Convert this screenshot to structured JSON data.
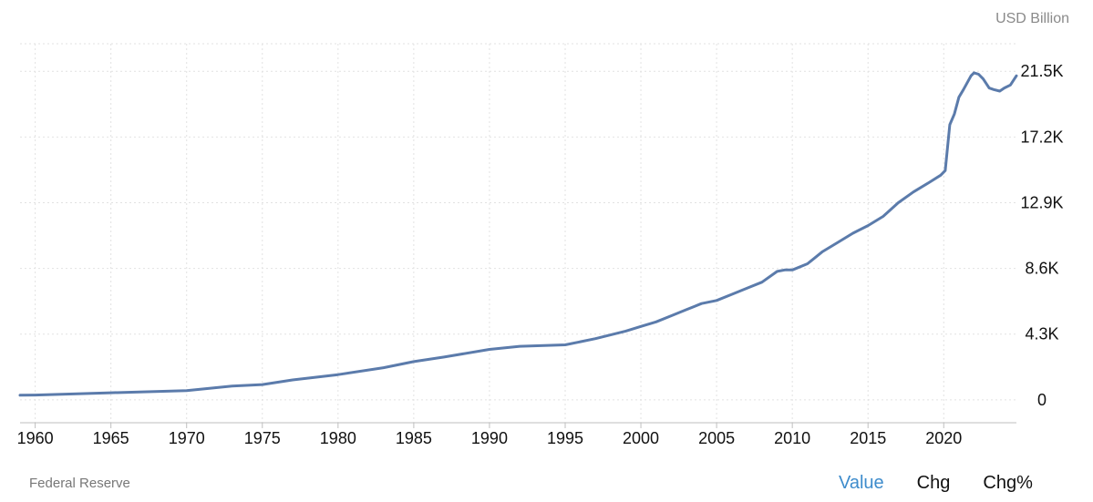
{
  "header": {
    "unit_label": "USD Billion"
  },
  "footer": {
    "source": "Federal Reserve",
    "tabs": [
      {
        "label": "Value",
        "active": true
      },
      {
        "label": "Chg",
        "active": false
      },
      {
        "label": "Chg%",
        "active": false
      }
    ]
  },
  "colors": {
    "line": "#5b7bab",
    "grid": "#e2e2e2",
    "axis": "#bfbfbf",
    "active_tab": "#3e8ccc"
  },
  "chart_data": {
    "type": "line",
    "grid": "dotted",
    "yaxis_side": "right",
    "xlim": [
      1959,
      2024.8
    ],
    "ylim": [
      -1500,
      23300
    ],
    "y_ticks": [
      0,
      4300,
      8600,
      12900,
      17200,
      21500
    ],
    "y_tick_labels": [
      "0",
      "4.3K",
      "8.6K",
      "12.9K",
      "17.2K",
      "21.5K"
    ],
    "x_ticks": [
      1960,
      1965,
      1970,
      1975,
      1980,
      1985,
      1990,
      1995,
      2000,
      2005,
      2010,
      2015,
      2020
    ],
    "x_tick_labels": [
      "1960",
      "1965",
      "1970",
      "1975",
      "1980",
      "1985",
      "1990",
      "1995",
      "2000",
      "2005",
      "2010",
      "2015",
      "2020"
    ],
    "series": [
      {
        "x": [
          1959,
          1960,
          1965,
          1970,
          1973,
          1975,
          1977,
          1980,
          1983,
          1985,
          1987,
          1990,
          1992,
          1995,
          1997,
          1999,
          2000,
          2001,
          2002,
          2003,
          2004,
          2005,
          2006,
          2007,
          2008,
          2009,
          2009.5,
          2010,
          2011,
          2011.5,
          2012,
          2013,
          2014,
          2015,
          2016,
          2017,
          2018,
          2019,
          2019.8,
          2020.1,
          2020.4,
          2020.7,
          2021,
          2021.3,
          2021.8,
          2022,
          2022.3,
          2022.6,
          2023,
          2023.3,
          2023.7,
          2024,
          2024.4,
          2024.8
        ],
        "y": [
          300,
          310,
          460,
          600,
          900,
          1000,
          1300,
          1650,
          2100,
          2500,
          2800,
          3300,
          3500,
          3600,
          4000,
          4500,
          4800,
          5100,
          5500,
          5900,
          6300,
          6500,
          6900,
          7300,
          7700,
          8400,
          8500,
          8500,
          8900,
          9300,
          9700,
          10300,
          10900,
          11400,
          12000,
          12900,
          13600,
          14200,
          14700,
          15000,
          18000,
          18700,
          19800,
          20300,
          21200,
          21400,
          21300,
          21000,
          20400,
          20300,
          20200,
          20400,
          20600,
          21200
        ]
      }
    ]
  }
}
